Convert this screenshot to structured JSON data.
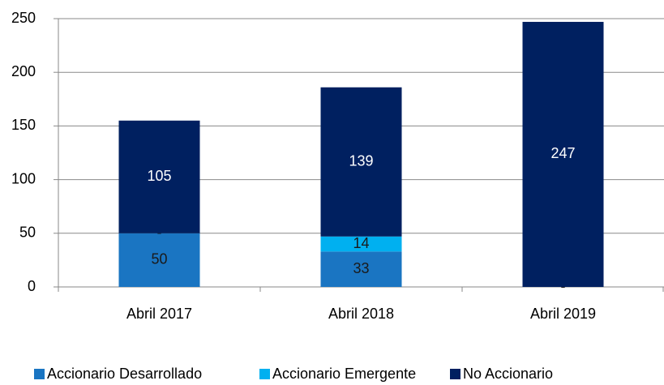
{
  "chart_data": {
    "type": "bar",
    "stacked": true,
    "categories": [
      "Abril 2017",
      "Abril 2018",
      "Abril 2019"
    ],
    "series": [
      {
        "name": "Accionario Desarrollado",
        "color": "#1a75c2",
        "values": [
          50,
          33,
          0
        ],
        "value_labels": [
          "50",
          "33",
          "-"
        ]
      },
      {
        "name": "Accionario Emergente",
        "color": "#00b0f0",
        "values": [
          0,
          14,
          0
        ],
        "value_labels": [
          "-",
          "14",
          null
        ]
      },
      {
        "name": "No Accionario",
        "color": "#002060",
        "values": [
          105,
          139,
          247
        ],
        "value_labels": [
          "105",
          "139",
          "247"
        ]
      }
    ],
    "ylim": [
      0,
      250
    ],
    "yticks": [
      0,
      50,
      100,
      150,
      200,
      250
    ],
    "grid": true,
    "legend": "bottom"
  }
}
